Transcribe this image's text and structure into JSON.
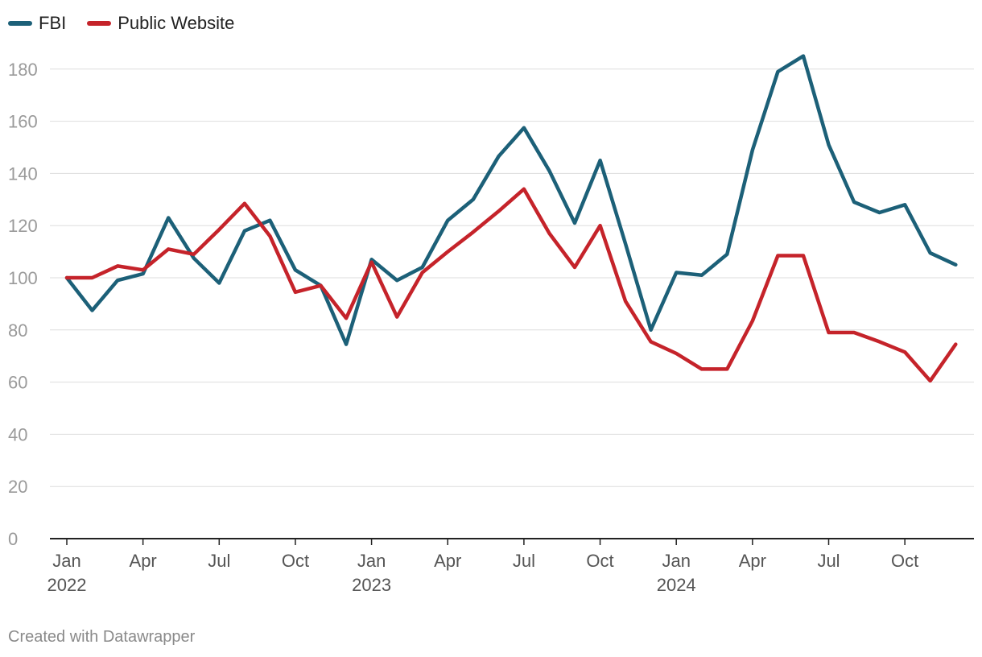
{
  "legend": [
    {
      "label": "FBI",
      "color": "#1c6078"
    },
    {
      "label": "Public Website",
      "color": "#c5232a"
    }
  ],
  "footer": "Created with Datawrapper",
  "chart_data": {
    "type": "line",
    "x": [
      "2022-01",
      "2022-02",
      "2022-03",
      "2022-04",
      "2022-05",
      "2022-06",
      "2022-07",
      "2022-08",
      "2022-09",
      "2022-10",
      "2022-11",
      "2022-12",
      "2023-01",
      "2023-02",
      "2023-03",
      "2023-04",
      "2023-05",
      "2023-06",
      "2023-07",
      "2023-08",
      "2023-09",
      "2023-10",
      "2023-11",
      "2023-12",
      "2024-01",
      "2024-02",
      "2024-03",
      "2024-04",
      "2024-05",
      "2024-06",
      "2024-07",
      "2024-08",
      "2024-09",
      "2024-10",
      "2024-11",
      "2024-12"
    ],
    "series": [
      {
        "name": "FBI",
        "color": "#1c6078",
        "values": [
          100,
          87.5,
          99,
          101.5,
          123,
          107.5,
          98,
          118,
          122,
          103,
          97,
          74.5,
          107,
          99,
          104,
          122,
          130,
          146.5,
          157.5,
          141,
          121,
          145,
          113,
          80,
          102,
          101,
          109,
          149,
          179,
          185,
          151,
          129,
          125,
          128,
          109.5,
          105
        ]
      },
      {
        "name": "Public Website",
        "color": "#c5232a",
        "values": [
          100,
          100,
          104.5,
          103,
          111,
          109,
          118.5,
          128.5,
          116,
          94.5,
          97,
          84.5,
          106,
          85,
          102,
          110,
          117.5,
          125.5,
          134,
          117,
          104,
          120,
          91,
          75.5,
          71,
          65,
          65,
          83.5,
          108.5,
          108.5,
          79,
          79,
          75.5,
          71.5,
          60.5,
          74.5
        ]
      }
    ],
    "y_ticks": [
      0,
      20,
      40,
      60,
      80,
      100,
      120,
      140,
      160,
      180
    ],
    "ylim": [
      0,
      190
    ],
    "x_ticks": [
      {
        "month": "Jan",
        "year": "2022"
      },
      {
        "month": "Apr",
        "year": ""
      },
      {
        "month": "Jul",
        "year": ""
      },
      {
        "month": "Oct",
        "year": ""
      },
      {
        "month": "Jan",
        "year": "2023"
      },
      {
        "month": "Apr",
        "year": ""
      },
      {
        "month": "Jul",
        "year": ""
      },
      {
        "month": "Oct",
        "year": ""
      },
      {
        "month": "Jan",
        "year": "2024"
      },
      {
        "month": "Apr",
        "year": ""
      },
      {
        "month": "Jul",
        "year": ""
      },
      {
        "month": "Oct",
        "year": ""
      }
    ],
    "grid": true,
    "legend_position": "top-left"
  }
}
